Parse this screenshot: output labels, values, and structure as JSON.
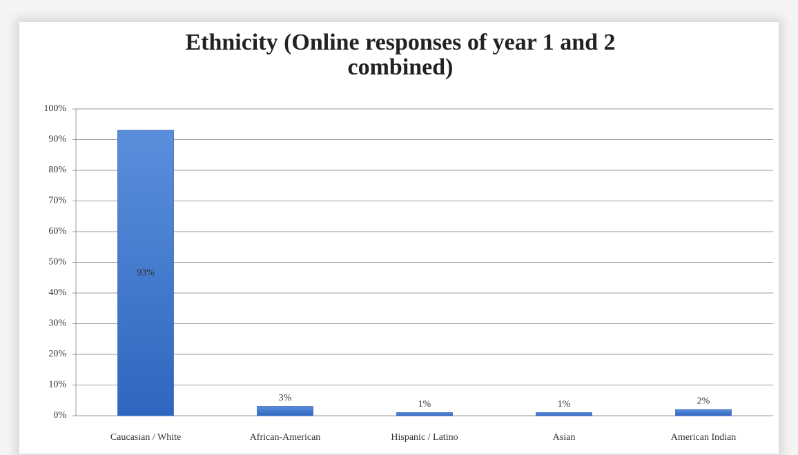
{
  "chart_data": {
    "type": "bar",
    "title": "Ethnicity (Online responses of year 1 and 2 combined)",
    "categories": [
      "Caucasian / White",
      "African-American",
      "Hispanic / Latino",
      "Asian",
      "American Indian"
    ],
    "values": [
      93,
      3,
      1,
      1,
      2
    ],
    "value_labels": [
      "93%",
      "3%",
      "1%",
      "1%",
      "2%"
    ],
    "color": "#4a7fd0",
    "ylim": [
      0,
      100
    ],
    "yticks": [
      {
        "value": 0,
        "label": "0%"
      },
      {
        "value": 10,
        "label": "10%"
      },
      {
        "value": 20,
        "label": "20%"
      },
      {
        "value": 30,
        "label": "30%"
      },
      {
        "value": 40,
        "label": "40%"
      },
      {
        "value": 50,
        "label": "50%"
      },
      {
        "value": 60,
        "label": "60%"
      },
      {
        "value": 70,
        "label": "70%"
      },
      {
        "value": 80,
        "label": "80%"
      },
      {
        "value": 90,
        "label": "90%"
      },
      {
        "value": 100,
        "label": "100%"
      }
    ],
    "grid": true
  }
}
